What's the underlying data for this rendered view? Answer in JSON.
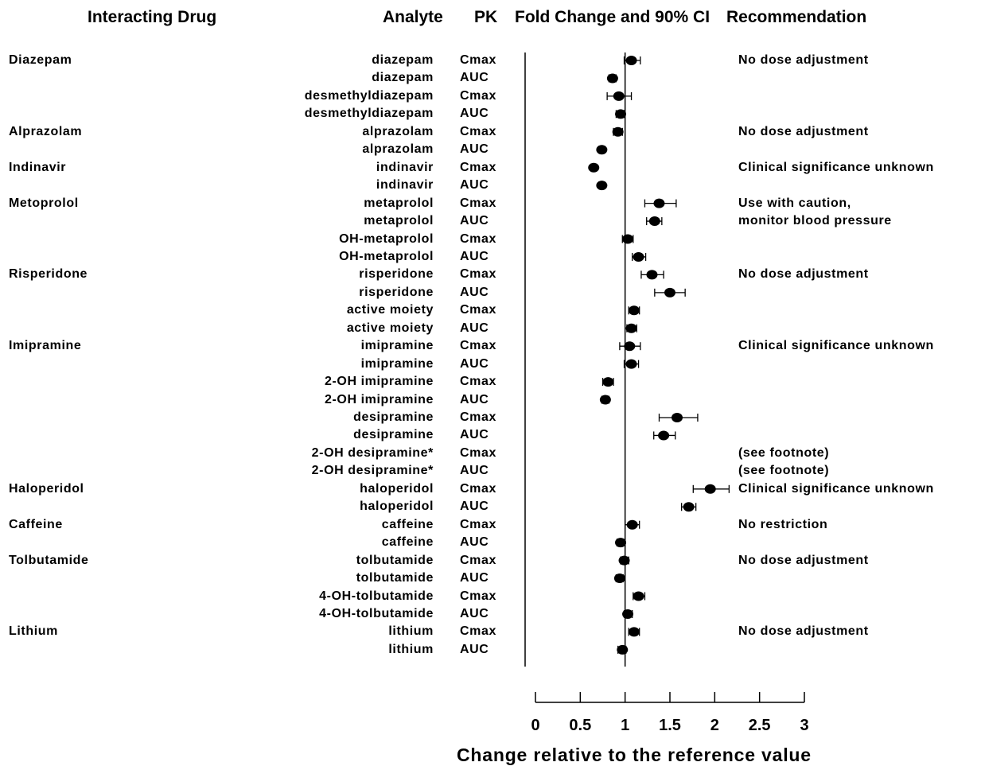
{
  "header": {
    "interacting_drug": "Interacting Drug",
    "analyte": "Analyte",
    "pk": "PK",
    "fold_change": "Fold Change and 90% CI",
    "recommendation": "Recommendation"
  },
  "chart_data": {
    "type": "forest",
    "title": "",
    "xlabel": "Change relative to the reference value",
    "xlim": [
      0,
      3
    ],
    "xticks": [
      0,
      0.5,
      1,
      1.5,
      2,
      2.5,
      3
    ],
    "xtick_labels": [
      "0",
      "0.5",
      "1",
      "1.5",
      "2",
      "2.5",
      "3"
    ],
    "reference_line": 1,
    "rows": [
      {
        "drug": "Diazepam",
        "analyte": "diazepam",
        "pk": "Cmax",
        "est": 1.07,
        "lo": 0.99,
        "hi": 1.17,
        "rec": "No dose adjustment"
      },
      {
        "drug": "",
        "analyte": "diazepam",
        "pk": "AUC",
        "est": 0.86,
        "lo": 0.82,
        "hi": 0.9,
        "rec": ""
      },
      {
        "drug": "",
        "analyte": "desmethyldiazepam",
        "pk": "Cmax",
        "est": 0.93,
        "lo": 0.8,
        "hi": 1.07,
        "rec": ""
      },
      {
        "drug": "",
        "analyte": "desmethyldiazepam",
        "pk": "AUC",
        "est": 0.95,
        "lo": 0.9,
        "hi": 0.99,
        "rec": ""
      },
      {
        "drug": "Alprazolam",
        "analyte": "alprazolam",
        "pk": "Cmax",
        "est": 0.92,
        "lo": 0.87,
        "hi": 0.97,
        "rec": "No dose adjustment"
      },
      {
        "drug": "",
        "analyte": "alprazolam",
        "pk": "AUC",
        "est": 0.74,
        "lo": 0.71,
        "hi": 0.77,
        "rec": ""
      },
      {
        "drug": "Indinavir",
        "analyte": "indinavir",
        "pk": "Cmax",
        "est": 0.65,
        "lo": 0.62,
        "hi": 0.68,
        "rec": "Clinical significance unknown"
      },
      {
        "drug": "",
        "analyte": "indinavir",
        "pk": "AUC",
        "est": 0.74,
        "lo": 0.71,
        "hi": 0.77,
        "rec": ""
      },
      {
        "drug": "Metoprolol",
        "analyte": "metaprolol",
        "pk": "Cmax",
        "est": 1.38,
        "lo": 1.22,
        "hi": 1.57,
        "rec": "Use with caution,"
      },
      {
        "drug": "",
        "analyte": "metaprolol",
        "pk": "AUC",
        "est": 1.33,
        "lo": 1.24,
        "hi": 1.41,
        "rec": "monitor blood pressure"
      },
      {
        "drug": "",
        "analyte": "OH-metaprolol",
        "pk": "Cmax",
        "est": 1.03,
        "lo": 0.97,
        "hi": 1.09,
        "rec": ""
      },
      {
        "drug": "",
        "analyte": "OH-metaprolol",
        "pk": "AUC",
        "est": 1.15,
        "lo": 1.08,
        "hi": 1.23,
        "rec": ""
      },
      {
        "drug": "Risperidone",
        "analyte": "risperidone",
        "pk": "Cmax",
        "est": 1.3,
        "lo": 1.18,
        "hi": 1.43,
        "rec": "No dose adjustment"
      },
      {
        "drug": "",
        "analyte": "risperidone",
        "pk": "AUC",
        "est": 1.5,
        "lo": 1.33,
        "hi": 1.67,
        "rec": ""
      },
      {
        "drug": "",
        "analyte": "active moiety",
        "pk": "Cmax",
        "est": 1.1,
        "lo": 1.04,
        "hi": 1.16,
        "rec": ""
      },
      {
        "drug": "",
        "analyte": "active moiety",
        "pk": "AUC",
        "est": 1.07,
        "lo": 1.02,
        "hi": 1.13,
        "rec": ""
      },
      {
        "drug": "Imipramine",
        "analyte": "imipramine",
        "pk": "Cmax",
        "est": 1.05,
        "lo": 0.94,
        "hi": 1.17,
        "rec": "Clinical significance unknown"
      },
      {
        "drug": "",
        "analyte": "imipramine",
        "pk": "AUC",
        "est": 1.07,
        "lo": 0.99,
        "hi": 1.15,
        "rec": ""
      },
      {
        "drug": "",
        "analyte": "2-OH imipramine",
        "pk": "Cmax",
        "est": 0.81,
        "lo": 0.75,
        "hi": 0.87,
        "rec": ""
      },
      {
        "drug": "",
        "analyte": "2-OH imipramine",
        "pk": "AUC",
        "est": 0.78,
        "lo": 0.74,
        "hi": 0.82,
        "rec": ""
      },
      {
        "drug": "",
        "analyte": "desipramine",
        "pk": "Cmax",
        "est": 1.58,
        "lo": 1.38,
        "hi": 1.81,
        "rec": ""
      },
      {
        "drug": "",
        "analyte": "desipramine",
        "pk": "AUC",
        "est": 1.43,
        "lo": 1.32,
        "hi": 1.56,
        "rec": ""
      },
      {
        "drug": "",
        "analyte": "2-OH desipramine*",
        "pk": "Cmax",
        "est": null,
        "lo": null,
        "hi": null,
        "rec": "(see footnote)"
      },
      {
        "drug": "",
        "analyte": "2-OH desipramine*",
        "pk": "AUC",
        "est": null,
        "lo": null,
        "hi": null,
        "rec": "(see footnote)"
      },
      {
        "drug": "Haloperidol",
        "analyte": "haloperidol",
        "pk": "Cmax",
        "est": 1.95,
        "lo": 1.76,
        "hi": 2.16,
        "rec": "Clinical significance unknown"
      },
      {
        "drug": "",
        "analyte": "haloperidol",
        "pk": "AUC",
        "est": 1.71,
        "lo": 1.63,
        "hi": 1.79,
        "rec": ""
      },
      {
        "drug": "Caffeine",
        "analyte": "caffeine",
        "pk": "Cmax",
        "est": 1.08,
        "lo": 1.0,
        "hi": 1.16,
        "rec": "No restriction"
      },
      {
        "drug": "",
        "analyte": "caffeine",
        "pk": "AUC",
        "est": 0.95,
        "lo": 0.91,
        "hi": 1.0,
        "rec": ""
      },
      {
        "drug": "Tolbutamide",
        "analyte": "tolbutamide",
        "pk": "Cmax",
        "est": 0.99,
        "lo": 0.95,
        "hi": 1.04,
        "rec": "No dose adjustment"
      },
      {
        "drug": "",
        "analyte": "tolbutamide",
        "pk": "AUC",
        "est": 0.94,
        "lo": 0.9,
        "hi": 0.98,
        "rec": ""
      },
      {
        "drug": "",
        "analyte": "4-OH-tolbutamide",
        "pk": "Cmax",
        "est": 1.15,
        "lo": 1.09,
        "hi": 1.22,
        "rec": ""
      },
      {
        "drug": "",
        "analyte": "4-OH-tolbutamide",
        "pk": "AUC",
        "est": 1.03,
        "lo": 0.99,
        "hi": 1.08,
        "rec": ""
      },
      {
        "drug": "Lithium",
        "analyte": "lithium",
        "pk": "Cmax",
        "est": 1.1,
        "lo": 1.04,
        "hi": 1.16,
        "rec": "No dose adjustment"
      },
      {
        "drug": "",
        "analyte": "lithium",
        "pk": "AUC",
        "est": 0.97,
        "lo": 0.92,
        "hi": 1.01,
        "rec": ""
      }
    ]
  }
}
